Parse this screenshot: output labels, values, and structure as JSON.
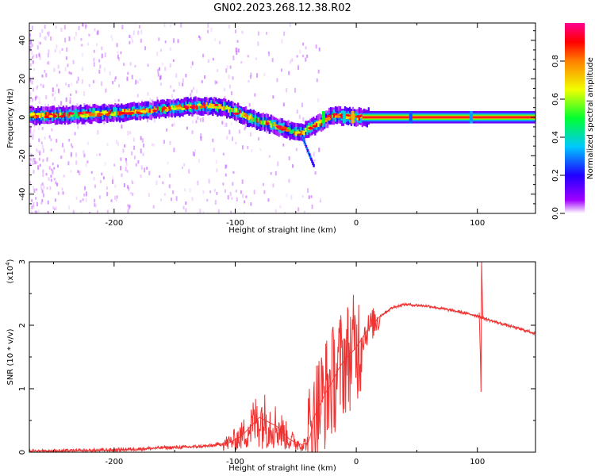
{
  "figure": {
    "title": "GN02.2023.268.12.38.R02"
  },
  "chart_data": [
    {
      "type": "heatmap",
      "xlabel": "Height of straight line (km)",
      "ylabel": "Frequency (Hz)",
      "xlim": [
        -270,
        148
      ],
      "ylim": [
        -50,
        49
      ],
      "xticks": [
        -200,
        -100,
        0,
        100
      ],
      "yticks": [
        -40,
        -20,
        0,
        20,
        40
      ],
      "colorbar": {
        "label": "Normalized spectral amplitude",
        "range": [
          0,
          1
        ],
        "ticks": [
          "0.0",
          "0.2",
          "0.4",
          "0.6",
          "0.8"
        ],
        "colormap": [
          "#ffffff",
          "#a000ff",
          "#2000ff",
          "#00c8ff",
          "#00ff30",
          "#f0ff00",
          "#ff8000",
          "#ff0000",
          "#ff0090"
        ]
      },
      "ridge": {
        "x": [
          -270,
          -240,
          -210,
          -180,
          -150,
          -125,
          -110,
          -100,
          -90,
          -80,
          -70,
          -60,
          -50,
          -45,
          -40,
          -30,
          -20,
          0,
          20,
          60,
          100,
          148
        ],
        "freq": [
          1,
          1,
          2,
          3,
          5,
          6,
          5,
          3,
          0,
          -2,
          -4,
          -6,
          -8,
          -8,
          -6,
          -3,
          1,
          0,
          0,
          0,
          0,
          0
        ]
      }
    },
    {
      "type": "line",
      "xlabel": "Height of straight line (km)",
      "ylabel": "SNR (10 * v/v)",
      "y_multiplier": "(x10^4)",
      "y_multiplier_base": "(x10",
      "y_multiplier_exp": "4",
      "y_multiplier_close": ")",
      "xlim": [
        -270,
        148
      ],
      "ylim": [
        0,
        3
      ],
      "xticks": [
        -200,
        -100,
        0,
        100
      ],
      "yticks": [
        0,
        1,
        2,
        3
      ],
      "series": [
        {
          "color": "#ee3333",
          "x": [
            -270,
            -240,
            -210,
            -180,
            -160,
            -140,
            -120,
            -105,
            -95,
            -90,
            -85,
            -80,
            -75,
            -70,
            -65,
            -60,
            -55,
            -50,
            -45,
            -40,
            -38,
            -35,
            -30,
            -25,
            -20,
            -15,
            -10,
            -5,
            0,
            5,
            10,
            20,
            30,
            40,
            60,
            80,
            100,
            110,
            130,
            148
          ],
          "y": [
            0.02,
            0.02,
            0.03,
            0.05,
            0.07,
            0.08,
            0.1,
            0.15,
            0.25,
            0.35,
            0.45,
            0.55,
            0.5,
            0.45,
            0.4,
            0.3,
            0.2,
            0.15,
            0.12,
            0.15,
            0.25,
            0.55,
            0.75,
            0.95,
            1.1,
            1.3,
            1.45,
            1.55,
            1.65,
            1.8,
            1.95,
            2.15,
            2.28,
            2.33,
            2.3,
            2.23,
            2.15,
            2.08,
            1.97,
            1.87
          ]
        }
      ]
    }
  ]
}
